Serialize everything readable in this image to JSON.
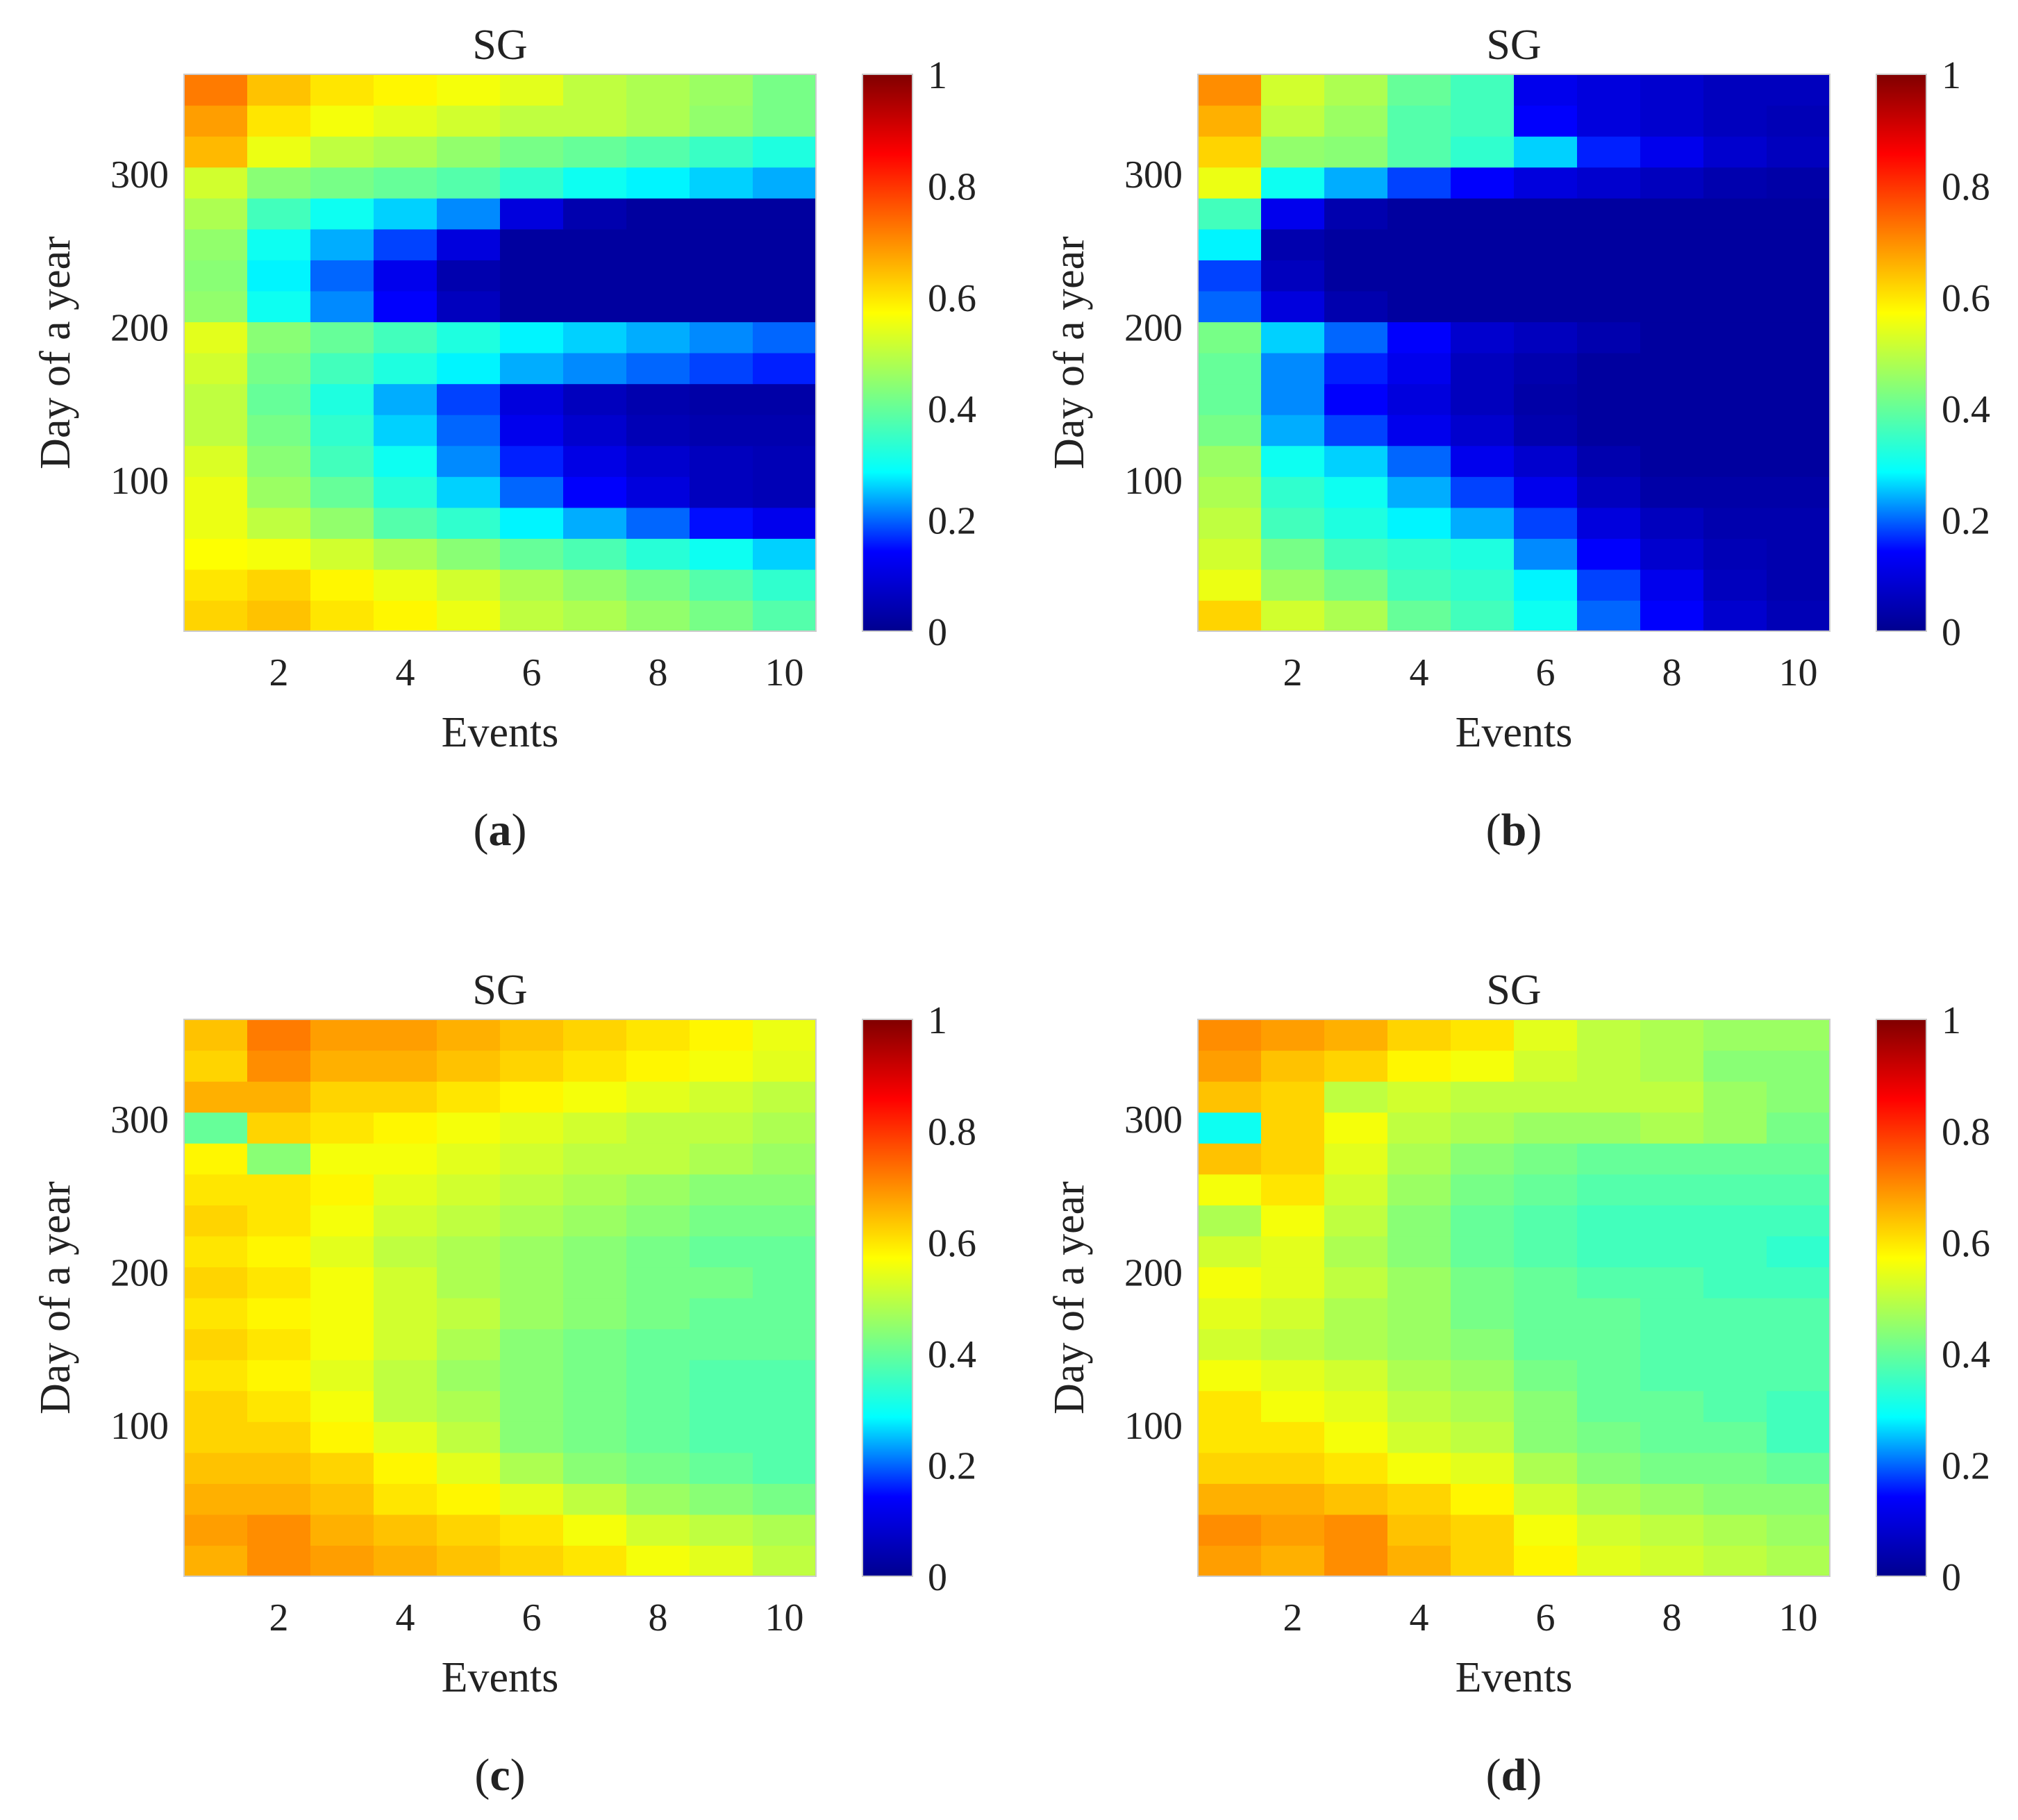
{
  "figure": {
    "colorscale": [
      "#00008f",
      "#0000ff",
      "#00ffff",
      "#7fff7f",
      "#ffff00",
      "#ff8000",
      "#ff0000",
      "#800000"
    ],
    "panels": [
      "a",
      "b",
      "c",
      "d"
    ]
  },
  "chart_data": [
    {
      "id": "a",
      "type": "heatmap",
      "title": "SG",
      "panel_label": "a",
      "xlabel": "Events",
      "ylabel": "Day of a year",
      "xlim": [
        0.5,
        10.5
      ],
      "ylim": [
        1,
        365
      ],
      "x_ticks": [
        2,
        4,
        6,
        8,
        10
      ],
      "y_ticks": [
        100,
        200,
        300
      ],
      "colorbar": {
        "range": [
          0,
          1
        ],
        "ticks": [
          "0",
          "0.2",
          "0.4",
          "0.6",
          "0.8",
          "1"
        ]
      },
      "x_categories": [
        1,
        2,
        3,
        4,
        5,
        6,
        7,
        8,
        9,
        10
      ],
      "y_days": [
        10,
        30,
        50,
        70,
        90,
        110,
        130,
        150,
        170,
        190,
        210,
        230,
        250,
        270,
        290,
        310,
        330,
        350
      ],
      "values": [
        [
          0.62,
          0.64,
          0.6,
          0.58,
          0.55,
          0.5,
          0.48,
          0.45,
          0.42,
          0.38
        ],
        [
          0.6,
          0.62,
          0.58,
          0.55,
          0.52,
          0.48,
          0.45,
          0.42,
          0.38,
          0.34
        ],
        [
          0.57,
          0.56,
          0.52,
          0.48,
          0.44,
          0.4,
          0.37,
          0.33,
          0.3,
          0.26
        ],
        [
          0.55,
          0.5,
          0.45,
          0.38,
          0.34,
          0.28,
          0.24,
          0.2,
          0.15,
          0.12
        ],
        [
          0.55,
          0.46,
          0.4,
          0.33,
          0.26,
          0.2,
          0.14,
          0.1,
          0.06,
          0.05
        ],
        [
          0.53,
          0.44,
          0.36,
          0.3,
          0.22,
          0.16,
          0.11,
          0.08,
          0.06,
          0.05
        ],
        [
          0.5,
          0.42,
          0.34,
          0.26,
          0.2,
          0.12,
          0.08,
          0.05,
          0.04,
          0.04
        ],
        [
          0.5,
          0.4,
          0.32,
          0.24,
          0.18,
          0.1,
          0.06,
          0.04,
          0.03,
          0.03
        ],
        [
          0.52,
          0.42,
          0.36,
          0.32,
          0.28,
          0.24,
          0.22,
          0.2,
          0.18,
          0.16
        ],
        [
          0.54,
          0.44,
          0.4,
          0.36,
          0.32,
          0.28,
          0.26,
          0.24,
          0.22,
          0.2
        ],
        [
          0.45,
          0.3,
          0.22,
          0.14,
          0.06,
          0.02,
          0.02,
          0.02,
          0.02,
          0.02
        ],
        [
          0.44,
          0.28,
          0.2,
          0.12,
          0.04,
          0.02,
          0.02,
          0.02,
          0.02,
          0.02
        ],
        [
          0.45,
          0.3,
          0.24,
          0.18,
          0.1,
          0.02,
          0.02,
          0.02,
          0.02,
          0.02
        ],
        [
          0.48,
          0.36,
          0.3,
          0.26,
          0.22,
          0.1,
          0.04,
          0.02,
          0.02,
          0.02
        ],
        [
          0.52,
          0.44,
          0.42,
          0.4,
          0.38,
          0.34,
          0.3,
          0.28,
          0.26,
          0.24
        ],
        [
          0.65,
          0.55,
          0.5,
          0.48,
          0.45,
          0.42,
          0.4,
          0.38,
          0.35,
          0.32
        ],
        [
          0.68,
          0.6,
          0.56,
          0.54,
          0.52,
          0.5,
          0.5,
          0.48,
          0.45,
          0.42
        ],
        [
          0.72,
          0.64,
          0.6,
          0.58,
          0.56,
          0.54,
          0.5,
          0.48,
          0.46,
          0.42
        ]
      ]
    },
    {
      "id": "b",
      "type": "heatmap",
      "title": "SG",
      "panel_label": "b",
      "xlabel": "Events",
      "ylabel": "Day of a year",
      "xlim": [
        0.5,
        10.5
      ],
      "ylim": [
        1,
        365
      ],
      "x_ticks": [
        2,
        4,
        6,
        8,
        10
      ],
      "y_ticks": [
        100,
        200,
        300
      ],
      "colorbar": {
        "range": [
          0,
          1
        ],
        "ticks": [
          "0",
          "0.2",
          "0.4",
          "0.6",
          "0.8",
          "1"
        ]
      },
      "x_categories": [
        1,
        2,
        3,
        4,
        5,
        6,
        7,
        8,
        9,
        10
      ],
      "y_days": [
        10,
        30,
        50,
        70,
        90,
        110,
        130,
        150,
        170,
        190,
        210,
        230,
        250,
        270,
        290,
        310,
        330,
        350
      ],
      "values": [
        [
          0.62,
          0.52,
          0.48,
          0.4,
          0.36,
          0.3,
          0.2,
          0.14,
          0.08,
          0.05
        ],
        [
          0.55,
          0.46,
          0.42,
          0.36,
          0.34,
          0.28,
          0.18,
          0.12,
          0.06,
          0.04
        ],
        [
          0.52,
          0.42,
          0.36,
          0.34,
          0.32,
          0.22,
          0.14,
          0.08,
          0.05,
          0.04
        ],
        [
          0.5,
          0.36,
          0.32,
          0.28,
          0.24,
          0.18,
          0.1,
          0.06,
          0.04,
          0.04
        ],
        [
          0.48,
          0.34,
          0.3,
          0.24,
          0.18,
          0.12,
          0.06,
          0.03,
          0.03,
          0.03
        ],
        [
          0.46,
          0.3,
          0.26,
          0.2,
          0.12,
          0.08,
          0.04,
          0.02,
          0.02,
          0.02
        ],
        [
          0.42,
          0.24,
          0.18,
          0.12,
          0.08,
          0.04,
          0.02,
          0.02,
          0.02,
          0.02
        ],
        [
          0.4,
          0.22,
          0.14,
          0.1,
          0.06,
          0.03,
          0.02,
          0.02,
          0.02,
          0.02
        ],
        [
          0.4,
          0.22,
          0.16,
          0.12,
          0.06,
          0.04,
          0.02,
          0.02,
          0.02,
          0.02
        ],
        [
          0.42,
          0.26,
          0.2,
          0.14,
          0.08,
          0.06,
          0.04,
          0.02,
          0.02,
          0.02
        ],
        [
          0.2,
          0.1,
          0.04,
          0.02,
          0.02,
          0.02,
          0.02,
          0.02,
          0.02,
          0.02
        ],
        [
          0.18,
          0.06,
          0.02,
          0.02,
          0.02,
          0.02,
          0.02,
          0.02,
          0.02,
          0.02
        ],
        [
          0.28,
          0.04,
          0.02,
          0.02,
          0.02,
          0.02,
          0.02,
          0.02,
          0.02,
          0.02
        ],
        [
          0.36,
          0.12,
          0.04,
          0.02,
          0.02,
          0.02,
          0.02,
          0.02,
          0.02,
          0.02
        ],
        [
          0.55,
          0.3,
          0.24,
          0.18,
          0.14,
          0.1,
          0.08,
          0.06,
          0.04,
          0.03
        ],
        [
          0.62,
          0.45,
          0.44,
          0.38,
          0.34,
          0.26,
          0.16,
          0.12,
          0.08,
          0.06
        ],
        [
          0.66,
          0.5,
          0.46,
          0.38,
          0.36,
          0.14,
          0.1,
          0.08,
          0.06,
          0.05
        ],
        [
          0.7,
          0.52,
          0.48,
          0.4,
          0.36,
          0.12,
          0.1,
          0.08,
          0.06,
          0.06
        ]
      ]
    },
    {
      "id": "c",
      "type": "heatmap",
      "title": "SG",
      "panel_label": "c",
      "xlabel": "Events",
      "ylabel": "Day of a year",
      "xlim": [
        0.5,
        10.5
      ],
      "ylim": [
        1,
        365
      ],
      "x_ticks": [
        2,
        4,
        6,
        8,
        10
      ],
      "y_ticks": [
        100,
        200,
        300
      ],
      "colorbar": {
        "range": [
          0,
          1
        ],
        "ticks": [
          "0",
          "0.2",
          "0.4",
          "0.6",
          "0.8",
          "1"
        ]
      },
      "x_categories": [
        1,
        2,
        3,
        4,
        5,
        6,
        7,
        8,
        9,
        10
      ],
      "y_days": [
        10,
        30,
        50,
        70,
        90,
        110,
        130,
        150,
        170,
        190,
        210,
        230,
        250,
        270,
        290,
        310,
        330,
        350
      ],
      "values": [
        [
          0.66,
          0.7,
          0.68,
          0.66,
          0.64,
          0.62,
          0.6,
          0.56,
          0.54,
          0.5
        ],
        [
          0.68,
          0.7,
          0.66,
          0.64,
          0.62,
          0.6,
          0.56,
          0.52,
          0.5,
          0.48
        ],
        [
          0.66,
          0.66,
          0.64,
          0.6,
          0.58,
          0.54,
          0.5,
          0.46,
          0.44,
          0.42
        ],
        [
          0.64,
          0.64,
          0.62,
          0.58,
          0.54,
          0.48,
          0.44,
          0.42,
          0.4,
          0.38
        ],
        [
          0.62,
          0.62,
          0.58,
          0.54,
          0.5,
          0.44,
          0.42,
          0.4,
          0.38,
          0.38
        ],
        [
          0.62,
          0.6,
          0.56,
          0.5,
          0.48,
          0.44,
          0.42,
          0.4,
          0.38,
          0.38
        ],
        [
          0.6,
          0.58,
          0.54,
          0.5,
          0.46,
          0.44,
          0.42,
          0.4,
          0.38,
          0.38
        ],
        [
          0.62,
          0.6,
          0.56,
          0.52,
          0.48,
          0.44,
          0.42,
          0.4,
          0.4,
          0.4
        ],
        [
          0.6,
          0.58,
          0.56,
          0.52,
          0.5,
          0.46,
          0.44,
          0.42,
          0.4,
          0.4
        ],
        [
          0.62,
          0.6,
          0.56,
          0.52,
          0.48,
          0.46,
          0.44,
          0.42,
          0.42,
          0.4
        ],
        [
          0.6,
          0.58,
          0.54,
          0.5,
          0.48,
          0.46,
          0.44,
          0.42,
          0.4,
          0.4
        ],
        [
          0.62,
          0.6,
          0.56,
          0.52,
          0.5,
          0.48,
          0.46,
          0.44,
          0.42,
          0.42
        ],
        [
          0.6,
          0.6,
          0.58,
          0.54,
          0.52,
          0.5,
          0.48,
          0.46,
          0.44,
          0.44
        ],
        [
          0.58,
          0.44,
          0.56,
          0.56,
          0.54,
          0.52,
          0.5,
          0.5,
          0.48,
          0.46
        ],
        [
          0.4,
          0.62,
          0.6,
          0.58,
          0.56,
          0.54,
          0.52,
          0.5,
          0.5,
          0.48
        ],
        [
          0.66,
          0.66,
          0.62,
          0.62,
          0.6,
          0.58,
          0.56,
          0.54,
          0.52,
          0.5
        ],
        [
          0.62,
          0.7,
          0.66,
          0.66,
          0.64,
          0.62,
          0.6,
          0.58,
          0.56,
          0.54
        ],
        [
          0.64,
          0.72,
          0.68,
          0.68,
          0.66,
          0.64,
          0.62,
          0.6,
          0.58,
          0.55
        ]
      ]
    },
    {
      "id": "d",
      "type": "heatmap",
      "title": "SG",
      "panel_label": "d",
      "xlabel": "Events",
      "ylabel": "Day of a year",
      "xlim": [
        0.5,
        10.5
      ],
      "ylim": [
        1,
        365
      ],
      "x_ticks": [
        2,
        4,
        6,
        8,
        10
      ],
      "y_ticks": [
        100,
        200,
        300
      ],
      "colorbar": {
        "range": [
          0,
          1
        ],
        "ticks": [
          "0",
          "0.2",
          "0.4",
          "0.6",
          "0.8",
          "1"
        ]
      },
      "x_categories": [
        1,
        2,
        3,
        4,
        5,
        6,
        7,
        8,
        9,
        10
      ],
      "y_days": [
        10,
        30,
        50,
        70,
        90,
        110,
        130,
        150,
        170,
        190,
        210,
        230,
        250,
        270,
        290,
        310,
        330,
        350
      ],
      "values": [
        [
          0.68,
          0.66,
          0.7,
          0.66,
          0.62,
          0.58,
          0.54,
          0.52,
          0.5,
          0.48
        ],
        [
          0.7,
          0.68,
          0.7,
          0.64,
          0.62,
          0.56,
          0.52,
          0.5,
          0.48,
          0.46
        ],
        [
          0.66,
          0.66,
          0.64,
          0.62,
          0.58,
          0.52,
          0.48,
          0.46,
          0.44,
          0.44
        ],
        [
          0.62,
          0.62,
          0.6,
          0.56,
          0.54,
          0.48,
          0.44,
          0.42,
          0.42,
          0.4
        ],
        [
          0.6,
          0.6,
          0.56,
          0.52,
          0.5,
          0.44,
          0.42,
          0.4,
          0.4,
          0.36
        ],
        [
          0.6,
          0.56,
          0.54,
          0.5,
          0.48,
          0.44,
          0.4,
          0.4,
          0.38,
          0.36
        ],
        [
          0.56,
          0.54,
          0.52,
          0.48,
          0.46,
          0.42,
          0.4,
          0.38,
          0.38,
          0.38
        ],
        [
          0.52,
          0.5,
          0.48,
          0.46,
          0.44,
          0.4,
          0.4,
          0.38,
          0.38,
          0.38
        ],
        [
          0.54,
          0.52,
          0.48,
          0.46,
          0.42,
          0.4,
          0.4,
          0.38,
          0.38,
          0.38
        ],
        [
          0.56,
          0.54,
          0.5,
          0.46,
          0.42,
          0.4,
          0.38,
          0.38,
          0.36,
          0.36
        ],
        [
          0.52,
          0.54,
          0.48,
          0.44,
          0.4,
          0.38,
          0.36,
          0.36,
          0.36,
          0.34
        ],
        [
          0.48,
          0.56,
          0.5,
          0.44,
          0.4,
          0.38,
          0.36,
          0.36,
          0.36,
          0.36
        ],
        [
          0.56,
          0.6,
          0.52,
          0.46,
          0.42,
          0.4,
          0.38,
          0.38,
          0.38,
          0.38
        ],
        [
          0.64,
          0.62,
          0.54,
          0.48,
          0.44,
          0.42,
          0.4,
          0.4,
          0.4,
          0.4
        ],
        [
          0.3,
          0.62,
          0.56,
          0.5,
          0.48,
          0.46,
          0.46,
          0.48,
          0.46,
          0.42
        ],
        [
          0.64,
          0.62,
          0.5,
          0.52,
          0.5,
          0.5,
          0.5,
          0.5,
          0.46,
          0.44
        ],
        [
          0.68,
          0.64,
          0.62,
          0.58,
          0.56,
          0.52,
          0.5,
          0.48,
          0.44,
          0.44
        ],
        [
          0.7,
          0.68,
          0.66,
          0.62,
          0.6,
          0.54,
          0.5,
          0.48,
          0.46,
          0.46
        ]
      ]
    }
  ]
}
